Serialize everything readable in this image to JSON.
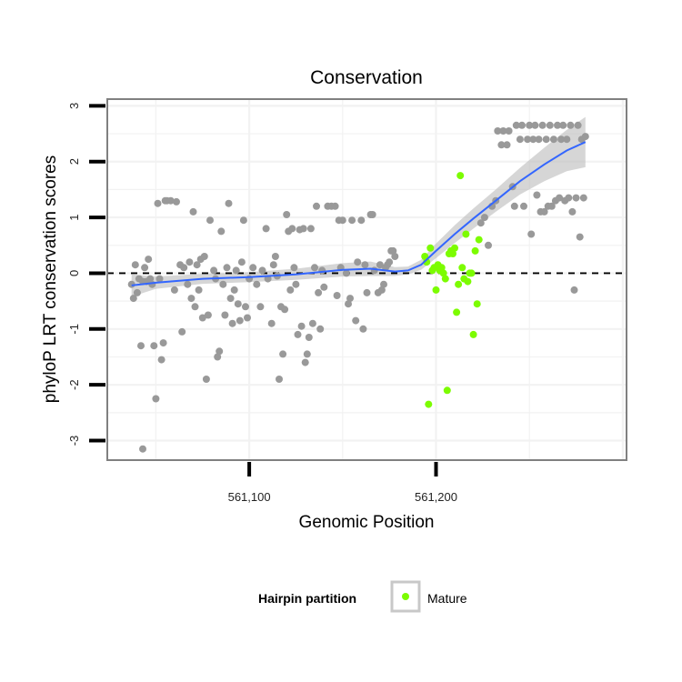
{
  "chart_data": {
    "type": "scatter",
    "title": "Conservation",
    "xlabel": "Genomic Position",
    "ylabel": "phyloP LRT conservation scores",
    "xlim": [
      561024,
      561302
    ],
    "ylim": [
      -3.35,
      3.12
    ],
    "x_ticks": [
      561100,
      561200
    ],
    "x_tick_labels": [
      "561,100",
      "561,200"
    ],
    "y_ticks": [
      -3,
      -2,
      -1,
      0,
      1,
      2,
      3
    ],
    "y_tick_labels": [
      "-3",
      "-2",
      "-1",
      "0",
      "1",
      "2",
      "3"
    ],
    "reference_line": {
      "y": 0,
      "style": "dashed",
      "color": "#000000"
    },
    "grid": true,
    "legend": {
      "title": "Hairpin partition",
      "position": "bottom",
      "entries": [
        {
          "label": "Mature",
          "color": "#7cfc00"
        }
      ]
    },
    "series": [
      {
        "role": "other",
        "color": "#999999",
        "points": [
          [
            561037,
            -0.2
          ],
          [
            561038,
            -0.45
          ],
          [
            561039,
            0.15
          ],
          [
            561040,
            -0.35
          ],
          [
            561041,
            -0.1
          ],
          [
            561042,
            -1.3
          ],
          [
            561043,
            -0.15
          ],
          [
            561043,
            -3.15
          ],
          [
            561044,
            0.1
          ],
          [
            561045,
            -0.15
          ],
          [
            561046,
            0.25
          ],
          [
            561047,
            -0.1
          ],
          [
            561048,
            -0.2
          ],
          [
            561049,
            -1.3
          ],
          [
            561050,
            -2.25
          ],
          [
            561051,
            1.25
          ],
          [
            561052,
            -0.1
          ],
          [
            561053,
            -1.55
          ],
          [
            561054,
            -1.25
          ],
          [
            561055,
            1.3
          ],
          [
            561056,
            1.3
          ],
          [
            561058,
            1.3
          ],
          [
            561060,
            -0.3
          ],
          [
            561061,
            1.28
          ],
          [
            561063,
            0.15
          ],
          [
            561064,
            -1.05
          ],
          [
            561065,
            0.1
          ],
          [
            561067,
            -0.2
          ],
          [
            561068,
            0.2
          ],
          [
            561069,
            -0.45
          ],
          [
            561070,
            1.1
          ],
          [
            561071,
            -0.6
          ],
          [
            561072,
            0.15
          ],
          [
            561073,
            -0.3
          ],
          [
            561074,
            0.25
          ],
          [
            561075,
            -0.8
          ],
          [
            561076,
            0.3
          ],
          [
            561077,
            -1.9
          ],
          [
            561078,
            -0.75
          ],
          [
            561079,
            0.95
          ],
          [
            561081,
            0.05
          ],
          [
            561082,
            -0.1
          ],
          [
            561083,
            -1.5
          ],
          [
            561084,
            -1.4
          ],
          [
            561085,
            0.75
          ],
          [
            561086,
            -0.2
          ],
          [
            561087,
            -0.75
          ],
          [
            561088,
            0.1
          ],
          [
            561089,
            1.25
          ],
          [
            561090,
            -0.45
          ],
          [
            561091,
            -0.9
          ],
          [
            561092,
            -0.3
          ],
          [
            561093,
            0.05
          ],
          [
            561094,
            -0.55
          ],
          [
            561095,
            -0.85
          ],
          [
            561096,
            0.2
          ],
          [
            561097,
            0.95
          ],
          [
            561098,
            -0.6
          ],
          [
            561099,
            -0.8
          ],
          [
            561100,
            -0.1
          ],
          [
            561102,
            0.1
          ],
          [
            561104,
            -0.2
          ],
          [
            561106,
            -0.6
          ],
          [
            561107,
            0.05
          ],
          [
            561109,
            0.8
          ],
          [
            561110,
            -0.1
          ],
          [
            561112,
            -0.9
          ],
          [
            561113,
            0.15
          ],
          [
            561114,
            0.3
          ],
          [
            561115,
            -0.05
          ],
          [
            561116,
            -1.9
          ],
          [
            561117,
            -0.6
          ],
          [
            561118,
            -1.45
          ],
          [
            561119,
            -0.65
          ],
          [
            561120,
            1.05
          ],
          [
            561121,
            0.75
          ],
          [
            561122,
            -0.3
          ],
          [
            561123,
            0.8
          ],
          [
            561124,
            0.1
          ],
          [
            561125,
            -0.2
          ],
          [
            561126,
            -1.1
          ],
          [
            561127,
            0.78
          ],
          [
            561128,
            -0.95
          ],
          [
            561129,
            0.8
          ],
          [
            561130,
            -1.6
          ],
          [
            561131,
            -1.45
          ],
          [
            561132,
            -1.15
          ],
          [
            561133,
            0.8
          ],
          [
            561134,
            -0.9
          ],
          [
            561135,
            0.1
          ],
          [
            561136,
            1.2
          ],
          [
            561137,
            -0.35
          ],
          [
            561138,
            -1.0
          ],
          [
            561139,
            0.05
          ],
          [
            561140,
            -0.25
          ],
          [
            561142,
            1.2
          ],
          [
            561144,
            1.2
          ],
          [
            561146,
            1.2
          ],
          [
            561147,
            -0.4
          ],
          [
            561148,
            0.95
          ],
          [
            561149,
            0.1
          ],
          [
            561150,
            0.95
          ],
          [
            561152,
            0.0
          ],
          [
            561153,
            -0.55
          ],
          [
            561154,
            -0.45
          ],
          [
            561155,
            0.95
          ],
          [
            561157,
            -0.85
          ],
          [
            561158,
            0.2
          ],
          [
            561160,
            0.95
          ],
          [
            561161,
            -1.0
          ],
          [
            561162,
            0.15
          ],
          [
            561163,
            -0.35
          ],
          [
            561165,
            1.05
          ],
          [
            561166,
            1.05
          ],
          [
            561167,
            0.05
          ],
          [
            561169,
            -0.35
          ],
          [
            561170,
            0.15
          ],
          [
            561171,
            -0.3
          ],
          [
            561172,
            -0.2
          ],
          [
            561173,
            0.1
          ],
          [
            561174,
            0.15
          ],
          [
            561175,
            0.2
          ],
          [
            561176,
            0.4
          ],
          [
            561177,
            0.4
          ],
          [
            561178,
            0.3
          ],
          [
            561224,
            0.9
          ],
          [
            561226,
            1.0
          ],
          [
            561228,
            0.5
          ],
          [
            561230,
            1.2
          ],
          [
            561232,
            1.3
          ],
          [
            561233,
            2.55
          ],
          [
            561235,
            2.3
          ],
          [
            561236,
            2.55
          ],
          [
            561238,
            2.3
          ],
          [
            561239,
            2.55
          ],
          [
            561241,
            1.55
          ],
          [
            561242,
            1.2
          ],
          [
            561243,
            2.65
          ],
          [
            561245,
            2.4
          ],
          [
            561246,
            2.65
          ],
          [
            561247,
            1.2
          ],
          [
            561249,
            2.4
          ],
          [
            561250,
            2.65
          ],
          [
            561251,
            0.7
          ],
          [
            561252,
            2.4
          ],
          [
            561253,
            2.65
          ],
          [
            561254,
            1.4
          ],
          [
            561255,
            2.4
          ],
          [
            561256,
            1.1
          ],
          [
            561257,
            2.65
          ],
          [
            561258,
            1.1
          ],
          [
            561259,
            2.4
          ],
          [
            561260,
            1.2
          ],
          [
            561261,
            2.65
          ],
          [
            561262,
            1.2
          ],
          [
            561263,
            2.4
          ],
          [
            561264,
            1.3
          ],
          [
            561265,
            2.65
          ],
          [
            561266,
            1.35
          ],
          [
            561267,
            2.4
          ],
          [
            561268,
            2.65
          ],
          [
            561269,
            1.3
          ],
          [
            561270,
            2.4
          ],
          [
            561271,
            1.35
          ],
          [
            561272,
            2.65
          ],
          [
            561273,
            1.1
          ],
          [
            561274,
            -0.3
          ],
          [
            561275,
            1.35
          ],
          [
            561276,
            2.65
          ],
          [
            561277,
            0.65
          ],
          [
            561278,
            2.4
          ],
          [
            561279,
            1.35
          ],
          [
            561280,
            2.45
          ]
        ]
      },
      {
        "role": "mature",
        "name": "Mature",
        "color": "#7cfc00",
        "points": [
          [
            561194,
            0.3
          ],
          [
            561195,
            0.2
          ],
          [
            561196,
            -2.35
          ],
          [
            561197,
            0.45
          ],
          [
            561198,
            0.05
          ],
          [
            561199,
            0.1
          ],
          [
            561200,
            -0.3
          ],
          [
            561201,
            0.15
          ],
          [
            561202,
            0.05
          ],
          [
            561203,
            0.1
          ],
          [
            561204,
            0.0
          ],
          [
            561205,
            -0.1
          ],
          [
            561206,
            -2.1
          ],
          [
            561207,
            0.35
          ],
          [
            561208,
            0.4
          ],
          [
            561209,
            0.35
          ],
          [
            561210,
            0.45
          ],
          [
            561211,
            -0.7
          ],
          [
            561212,
            -0.2
          ],
          [
            561213,
            1.75
          ],
          [
            561214,
            0.1
          ],
          [
            561215,
            -0.1
          ],
          [
            561216,
            0.7
          ],
          [
            561217,
            -0.15
          ],
          [
            561218,
            0.0
          ],
          [
            561219,
            0.0
          ],
          [
            561220,
            -1.1
          ],
          [
            561221,
            0.4
          ],
          [
            561222,
            -0.55
          ],
          [
            561223,
            0.6
          ]
        ]
      }
    ],
    "smooth": {
      "color": "#3366ff",
      "ribbon_color": "#bbbbbb",
      "curve": [
        [
          561037,
          -0.22,
          0.2
        ],
        [
          561050,
          -0.17,
          0.11
        ],
        [
          561075,
          -0.1,
          0.09
        ],
        [
          561100,
          -0.07,
          0.09
        ],
        [
          561125,
          -0.02,
          0.1
        ],
        [
          561150,
          0.06,
          0.12
        ],
        [
          561165,
          0.08,
          0.13
        ],
        [
          561178,
          0.03,
          0.08
        ],
        [
          561185,
          0.05,
          0.07
        ],
        [
          561192,
          0.15,
          0.09
        ],
        [
          561200,
          0.4,
          0.13
        ],
        [
          561210,
          0.7,
          0.16
        ],
        [
          561220,
          0.98,
          0.18
        ],
        [
          561232,
          1.3,
          0.2
        ],
        [
          561245,
          1.65,
          0.24
        ],
        [
          561258,
          1.95,
          0.3
        ],
        [
          561270,
          2.2,
          0.37
        ],
        [
          561280,
          2.35,
          0.45
        ]
      ]
    }
  }
}
